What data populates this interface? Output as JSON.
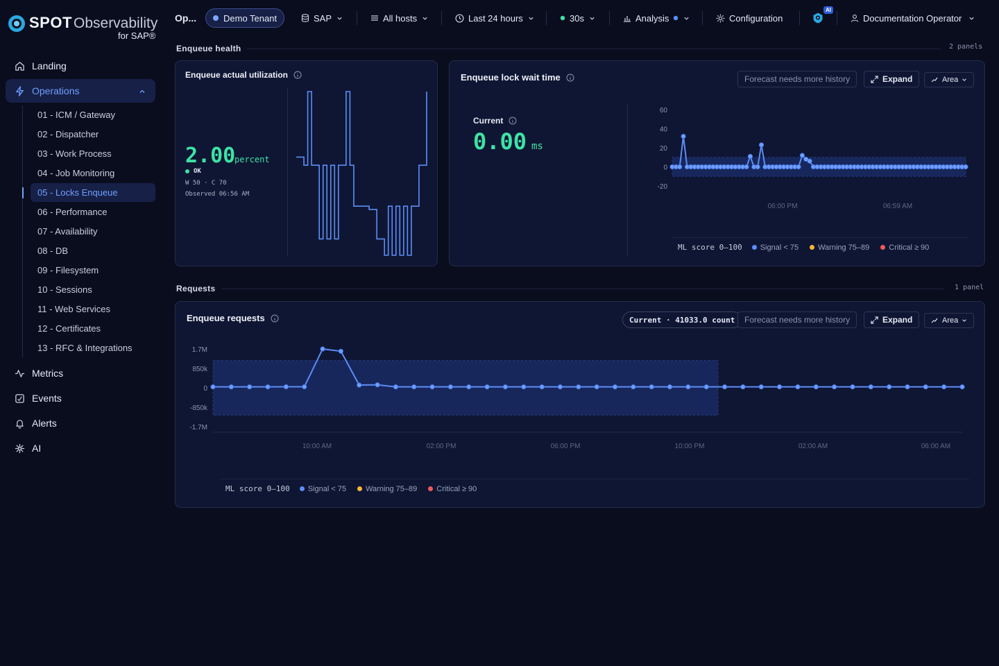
{
  "brand": {
    "name_bold": "SPOT",
    "name_light": "Observability",
    "suffix": "for SAP®"
  },
  "sidebar": {
    "items": [
      {
        "label": "Landing",
        "icon": "home-icon"
      },
      {
        "label": "Operations",
        "icon": "bolt-icon",
        "active": true
      },
      {
        "label": "Metrics",
        "icon": "pulse-icon"
      },
      {
        "label": "Events",
        "icon": "events-icon"
      },
      {
        "label": "Alerts",
        "icon": "bell-icon"
      },
      {
        "label": "AI",
        "icon": "sparkle-icon"
      }
    ],
    "operations_children": [
      "01 - ICM / Gateway",
      "02 - Dispatcher",
      "03 - Work Process",
      "04 - Job Monitoring",
      "05 - Locks Enqueue",
      "06 - Performance",
      "07 - Availability",
      "08 - DB",
      "09 - Filesystem",
      "10 - Sessions",
      "11 - Web Services",
      "12 - Certificates",
      "13 - RFC & Integrations"
    ],
    "active_child": "05 - Locks Enqueue"
  },
  "topbar": {
    "page_short": "Op...",
    "tenant": "Demo Tenant",
    "system": "SAP",
    "hosts": "All hosts",
    "range": "Last 24 hours",
    "refresh": "30s",
    "analysis": "Analysis",
    "configuration": "Configuration",
    "ai_badge": "AI",
    "user": "Documentation Operator"
  },
  "sections": {
    "health": {
      "title": "Enqueue health",
      "count": "2 panels"
    },
    "requests": {
      "title": "Requests",
      "count": "1 panel"
    }
  },
  "util_panel": {
    "title": "Enqueue actual utilization",
    "value": "2.00",
    "unit": "percent",
    "status": "OK",
    "thresholds": "W 50 · C 70",
    "observed": "Observed 06:56 AM",
    "accent": "#3ee2a5"
  },
  "lock_panel": {
    "title": "Enqueue lock wait time",
    "current_label": "Current",
    "value": "0.00",
    "unit": "ms",
    "forecast": "Forecast needs more history",
    "expand": "Expand",
    "mode": "Area",
    "y_ticks": [
      "60",
      "40",
      "20",
      "0",
      "-20"
    ],
    "x_ticks": [
      "06:00 PM",
      "06:59 AM"
    ]
  },
  "requests_panel": {
    "title": "Enqueue requests",
    "current_badge": "Current · 41033.0 count",
    "forecast": "Forecast needs more history",
    "expand": "Expand",
    "mode": "Area",
    "y_ticks": [
      "1.7M",
      "850k",
      "0",
      "-850k",
      "-1.7M"
    ],
    "x_ticks": [
      "10:00 AM",
      "02:00 PM",
      "06:00 PM",
      "10:00 PM",
      "02:00 AM",
      "06:00 AM"
    ]
  },
  "legend": {
    "head": "ML score 0–100",
    "signal": "Signal < 75",
    "warning": "Warning 75–89",
    "critical": "Critical ≥ 90",
    "colors": {
      "signal": "#5b8ef7",
      "warning": "#f5b731",
      "critical": "#f0575b"
    }
  },
  "chart_data": [
    {
      "type": "line",
      "title": "Enqueue actual utilization",
      "series": [
        {
          "values": [
            60,
            60,
            55,
            100,
            55,
            55,
            10,
            55,
            10,
            55,
            10,
            55,
            55,
            100,
            55,
            30,
            30,
            30,
            30,
            28,
            28,
            10,
            10,
            0,
            30,
            0,
            30,
            0,
            30,
            0,
            30,
            30,
            55,
            55,
            100
          ]
        }
      ]
    },
    {
      "type": "line",
      "title": "Enqueue lock wait time",
      "ylim": [
        -20,
        60
      ],
      "x_ticks": [
        "06:00 PM",
        "06:59 AM"
      ],
      "series": [
        {
          "values": [
            0,
            0,
            0,
            32,
            0,
            0,
            0,
            0,
            0,
            0,
            0,
            0,
            0,
            0,
            0,
            0,
            0,
            0,
            0,
            0,
            0,
            11,
            0,
            0,
            23,
            0,
            0,
            0,
            0,
            0,
            0,
            0,
            0,
            0,
            0,
            12,
            8,
            6,
            0,
            0,
            0,
            0,
            0,
            0,
            0,
            0,
            0,
            0,
            0,
            0,
            0,
            0,
            0,
            0,
            0,
            0,
            0,
            0,
            0,
            0,
            0,
            0,
            0,
            0,
            0,
            0,
            0,
            0,
            0,
            0,
            0,
            0,
            0,
            0,
            0,
            0,
            0,
            0,
            0,
            0
          ]
        }
      ]
    },
    {
      "type": "line",
      "title": "Enqueue requests",
      "ylim": [
        -1700000,
        1700000
      ],
      "x_ticks": [
        "10:00 AM",
        "02:00 PM",
        "06:00 PM",
        "10:00 PM",
        "02:00 AM",
        "06:00 AM"
      ],
      "series": [
        {
          "values": [
            41000,
            41000,
            41000,
            41000,
            45000,
            45000,
            1700000,
            1600000,
            120000,
            130000,
            41000,
            41000,
            41000,
            41000,
            41000,
            41000,
            41000,
            41000,
            41000,
            41000,
            41000,
            41000,
            41000,
            41000,
            41000,
            41000,
            41000,
            41000,
            41000,
            41000,
            41000,
            41000,
            41000,
            41000,
            41000,
            41000,
            41000,
            41000,
            41000,
            41000,
            41000,
            41033
          ]
        }
      ]
    }
  ]
}
